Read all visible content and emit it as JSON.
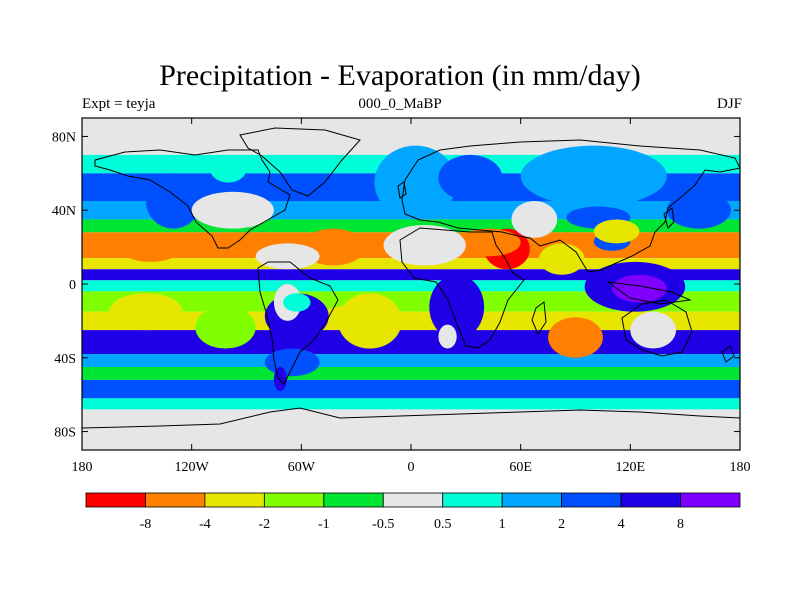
{
  "title": "Precipitation - Evaporation (in mm/day)",
  "left_string": "Expt = teyja",
  "center_string": "000_0_MaBP",
  "right_string": "DJF",
  "chart_data": {
    "type": "heatmap",
    "projection": "cylindrical-equidistant",
    "lon_range": [
      -180,
      180
    ],
    "lat_range": [
      -90,
      90
    ],
    "x_ticks": [
      {
        "lon": -180,
        "label": "180"
      },
      {
        "lon": -120,
        "label": "120W"
      },
      {
        "lon": -60,
        "label": "60W"
      },
      {
        "lon": 0,
        "label": "0"
      },
      {
        "lon": 60,
        "label": "60E"
      },
      {
        "lon": 120,
        "label": "120E"
      },
      {
        "lon": 180,
        "label": "180"
      }
    ],
    "y_ticks": [
      {
        "lat": 80,
        "label": "80N"
      },
      {
        "lat": 40,
        "label": "40N"
      },
      {
        "lat": 0,
        "label": "0"
      },
      {
        "lat": -40,
        "label": "40S"
      },
      {
        "lat": -80,
        "label": "80S"
      }
    ],
    "missing_color": "#e6e6e6",
    "colorbar": {
      "colors": [
        "#ff0000",
        "#ff8000",
        "#e6e600",
        "#80ff00",
        "#00e633",
        "#e6e6e6",
        "#00ffd9",
        "#00a6ff",
        "#0050ff",
        "#2000e6",
        "#8000ff"
      ],
      "labels": [
        "-8",
        "-4",
        "-2",
        "-1",
        "-0.5",
        "0.5",
        "1",
        "2",
        "4",
        "8"
      ]
    },
    "bands": [
      {
        "lat": [
          70,
          90
        ],
        "level": 5
      },
      {
        "lat": [
          60,
          70
        ],
        "level": 6
      },
      {
        "lat": [
          45,
          60
        ],
        "level": 8
      },
      {
        "lat": [
          35,
          45
        ],
        "level": 7
      },
      {
        "lat": [
          28,
          35
        ],
        "level": 4
      },
      {
        "lat": [
          14,
          28
        ],
        "level": 1
      },
      {
        "lat": [
          8,
          14
        ],
        "level": 2
      },
      {
        "lat": [
          2,
          8
        ],
        "level": 9
      },
      {
        "lat": [
          -4,
          2
        ],
        "level": 6
      },
      {
        "lat": [
          -15,
          -4
        ],
        "level": 3
      },
      {
        "lat": [
          -25,
          -15
        ],
        "level": 2
      },
      {
        "lat": [
          -38,
          -25
        ],
        "level": 9
      },
      {
        "lat": [
          -45,
          -38
        ],
        "level": 7
      },
      {
        "lat": [
          -52,
          -45
        ],
        "level": 4
      },
      {
        "lat": [
          -62,
          -52
        ],
        "level": 8
      },
      {
        "lat": [
          -68,
          -62
        ],
        "level": 6
      },
      {
        "lat": [
          -90,
          -68
        ],
        "level": 5
      }
    ],
    "regions": [
      {
        "lon": [
          -165,
          -125
        ],
        "lat": [
          -25,
          -5
        ],
        "level": 2
      },
      {
        "lon": [
          -118,
          -85
        ],
        "lat": [
          -35,
          -12
        ],
        "level": 3
      },
      {
        "lon": [
          -40,
          -5
        ],
        "lat": [
          -35,
          -5
        ],
        "level": 2
      },
      {
        "lon": [
          75,
          105
        ],
        "lat": [
          -40,
          -18
        ],
        "level": 1
      },
      {
        "lon": [
          -160,
          -125
        ],
        "lat": [
          12,
          28
        ],
        "level": 1
      },
      {
        "lon": [
          -60,
          -25
        ],
        "lat": [
          10,
          30
        ],
        "level": 1
      },
      {
        "lon": [
          -50,
          -20
        ],
        "lat": [
          -25,
          -12
        ],
        "level": 2
      },
      {
        "lon": [
          -20,
          25
        ],
        "lat": [
          35,
          75
        ],
        "level": 7
      },
      {
        "lon": [
          -145,
          -115
        ],
        "lat": [
          30,
          60
        ],
        "level": 8
      },
      {
        "lon": [
          140,
          175
        ],
        "lat": [
          30,
          50
        ],
        "level": 8
      },
      {
        "lon": [
          15,
          50
        ],
        "lat": [
          45,
          70
        ],
        "level": 8
      },
      {
        "lon": [
          95,
          150
        ],
        "lat": [
          -15,
          12
        ],
        "level": 9
      },
      {
        "lon": [
          110,
          140
        ],
        "lat": [
          -10,
          5
        ],
        "level": 10
      },
      {
        "lon": [
          -85,
          -50
        ],
        "lat": [
          8,
          22
        ],
        "level": 5
      },
      {
        "lon": [
          -80,
          -45
        ],
        "lat": [
          -30,
          -5
        ],
        "level": 9
      },
      {
        "lon": [
          -80,
          -50
        ],
        "lat": [
          -50,
          -35
        ],
        "level": 8
      },
      {
        "lon": [
          -75,
          -68
        ],
        "lat": [
          -58,
          -45
        ],
        "level": 9
      },
      {
        "lon": [
          10,
          40
        ],
        "lat": [
          -30,
          5
        ],
        "level": 9
      },
      {
        "lon": [
          15,
          25
        ],
        "lat": [
          -35,
          -22
        ],
        "level": 5
      },
      {
        "lon": [
          120,
          145
        ],
        "lat": [
          -35,
          -15
        ],
        "level": 5
      },
      {
        "lon": [
          40,
          65
        ],
        "lat": [
          8,
          30
        ],
        "level": 0
      },
      {
        "lon": [
          25,
          60
        ],
        "lat": [
          15,
          30
        ],
        "level": 1
      },
      {
        "lon": [
          -15,
          30
        ],
        "lat": [
          10,
          32
        ],
        "level": 5
      },
      {
        "lon": [
          55,
          80
        ],
        "lat": [
          25,
          45
        ],
        "level": 5
      },
      {
        "lon": [
          -120,
          -75
        ],
        "lat": [
          30,
          50
        ],
        "level": 5
      },
      {
        "lon": [
          -110,
          -90
        ],
        "lat": [
          55,
          70
        ],
        "level": 6
      },
      {
        "lon": [
          60,
          140
        ],
        "lat": [
          42,
          75
        ],
        "level": 7
      },
      {
        "lon": [
          85,
          120
        ],
        "lat": [
          30,
          42
        ],
        "level": 8
      },
      {
        "lon": [
          100,
          120
        ],
        "lat": [
          18,
          28
        ],
        "level": 8
      },
      {
        "lon": [
          70,
          95
        ],
        "lat": [
          5,
          22
        ],
        "level": 2
      },
      {
        "lon": [
          100,
          125
        ],
        "lat": [
          22,
          35
        ],
        "level": 2
      },
      {
        "lon": [
          -75,
          -60
        ],
        "lat": [
          -20,
          0
        ],
        "level": 5
      },
      {
        "lon": [
          -70,
          -55
        ],
        "lat": [
          -15,
          -5
        ],
        "level": 6
      }
    ]
  }
}
